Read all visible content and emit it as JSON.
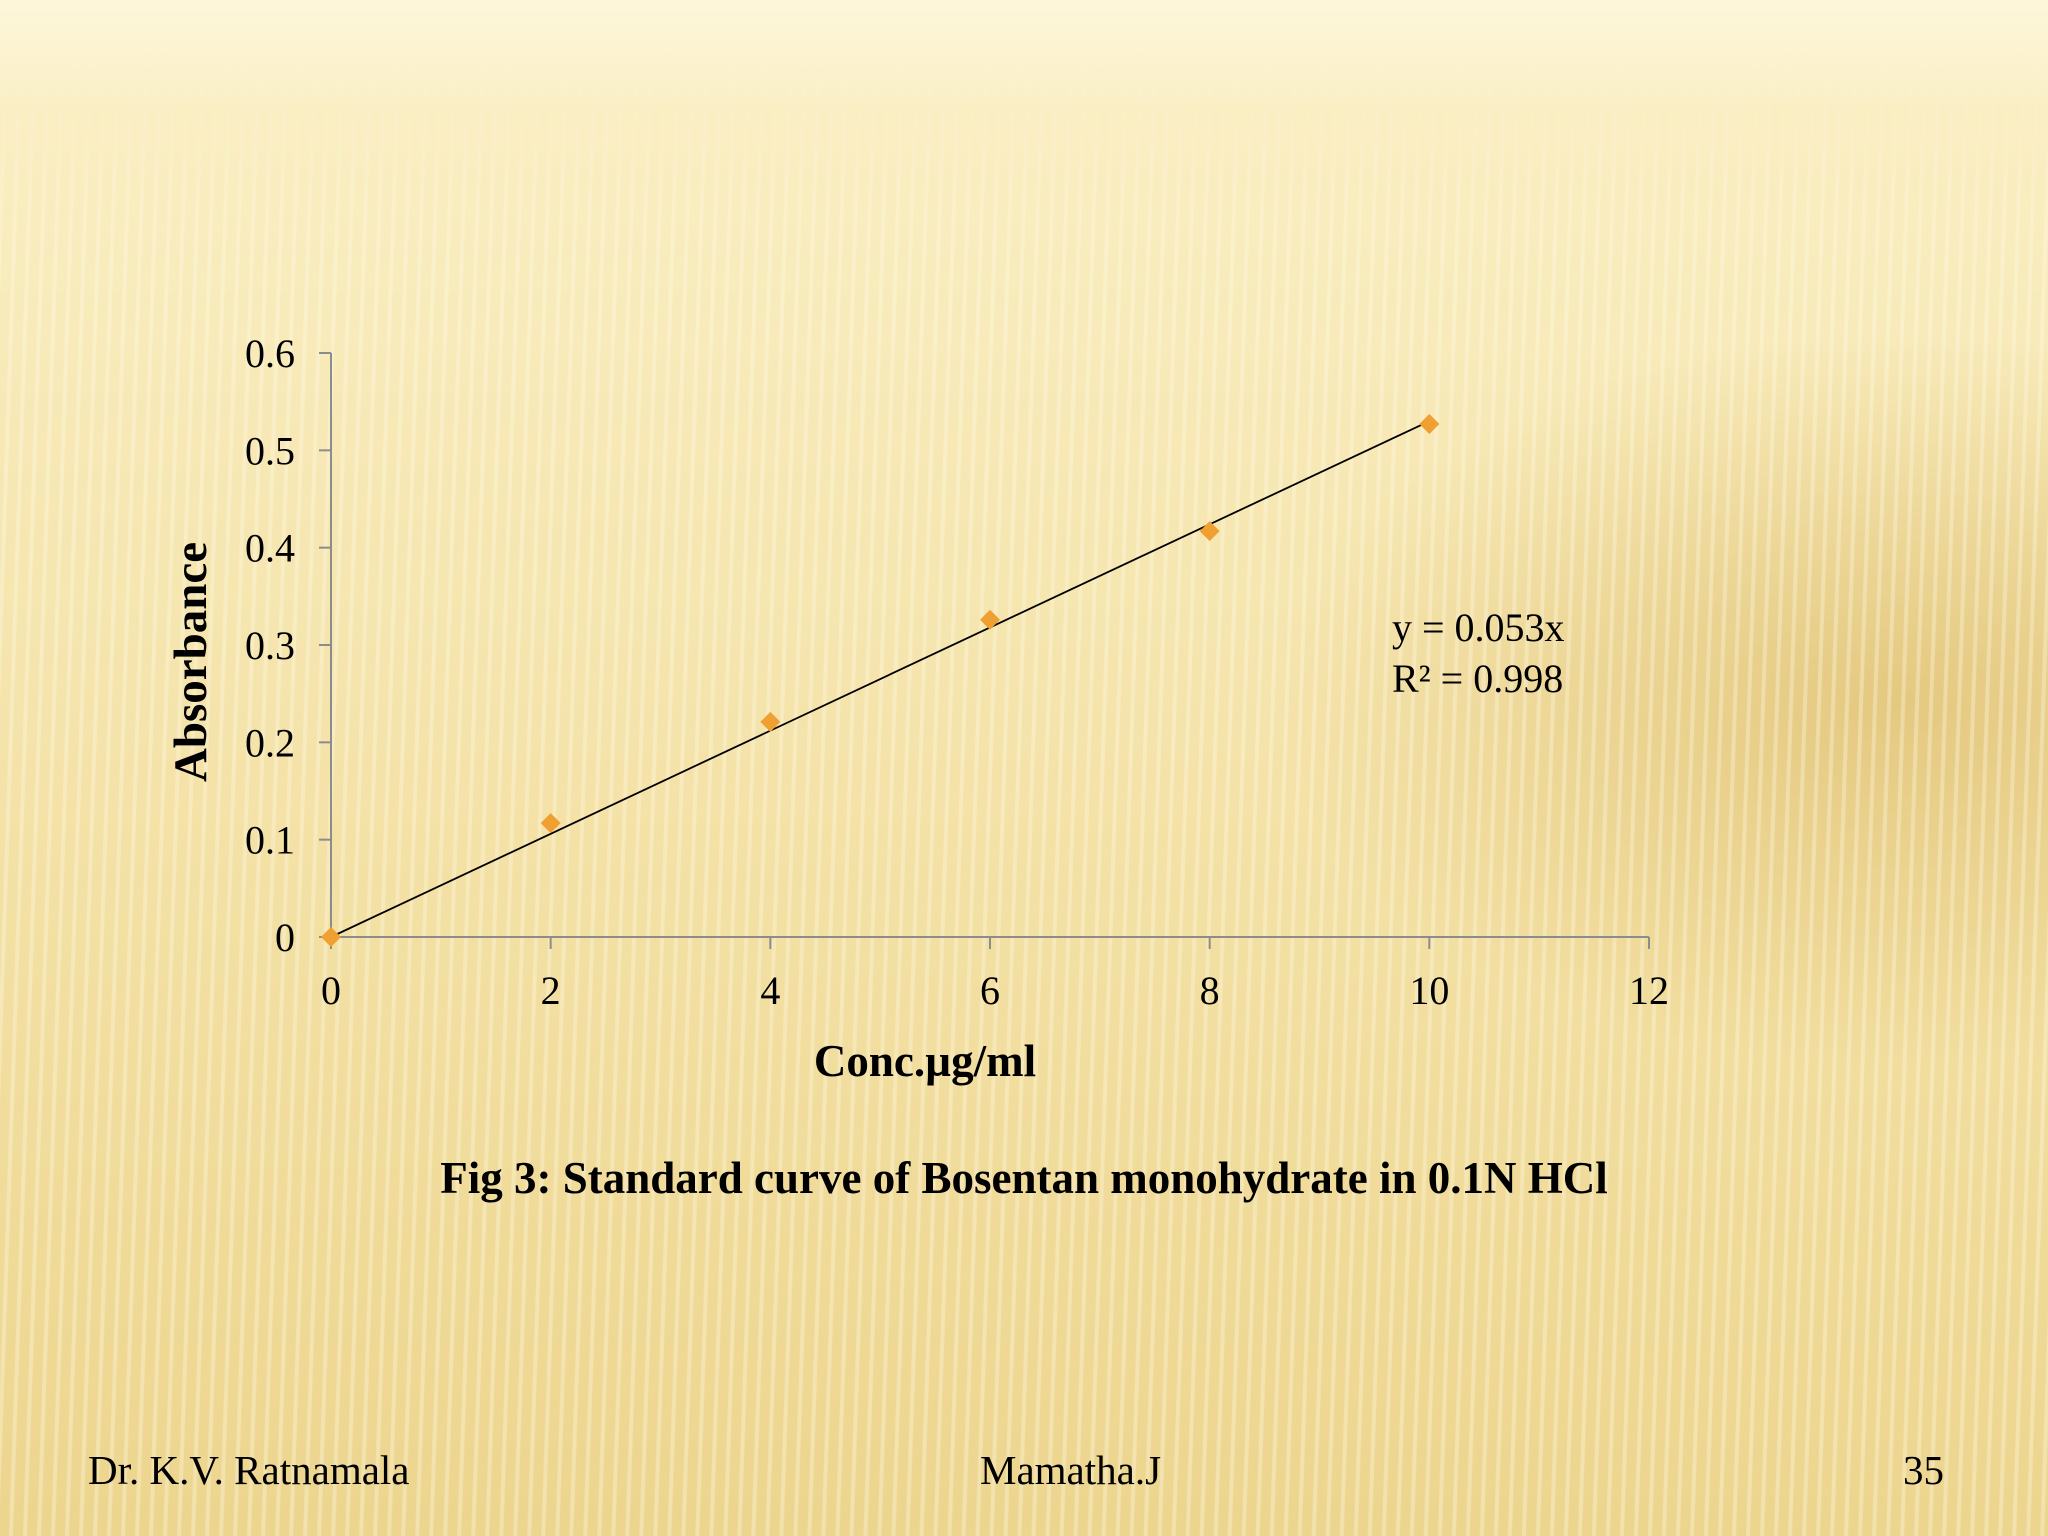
{
  "chart_data": {
    "type": "scatter",
    "x": [
      0,
      2,
      4,
      6,
      8,
      10
    ],
    "y": [
      0,
      0.117,
      0.221,
      0.326,
      0.417,
      0.527
    ],
    "xlabel": "Conc.µg/ml",
    "ylabel": "Absorbance",
    "xlim": [
      0,
      12
    ],
    "ylim": [
      0,
      0.6
    ],
    "x_ticks": [
      "0",
      "2",
      "4",
      "6",
      "8",
      "10",
      "12"
    ],
    "y_ticks": [
      "0",
      "0.1",
      "0.2",
      "0.3",
      "0.4",
      "0.5",
      "0.6"
    ],
    "trendline": {
      "slope": 0.053,
      "intercept": 0,
      "equation": "y = 0.053x",
      "r_squared": "R² = 0.998"
    },
    "marker": "diamond",
    "grid": false,
    "legend": "none",
    "colors": {
      "marker": "#f0a030",
      "line": "#000000",
      "axis": "#8c8c8c"
    }
  },
  "caption": "Fig 3: Standard curve of Bosentan monohydrate in 0.1N HCl",
  "footer": {
    "left": "Dr. K.V. Ratnamala",
    "center": "Mamatha.J",
    "page_number": "35"
  }
}
